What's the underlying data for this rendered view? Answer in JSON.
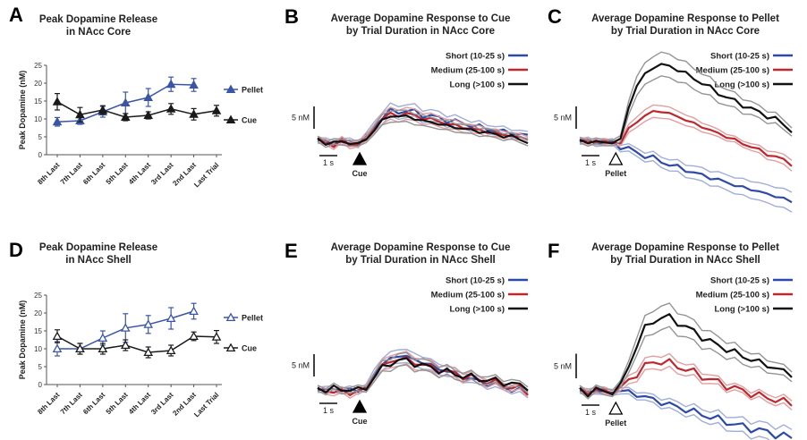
{
  "chart_data": [
    {
      "panel": "A",
      "type": "line",
      "title_lines": [
        "Peak Dopamine Release",
        "in NAcc Core"
      ],
      "ylabel": "Peak Dopamine (nM)",
      "ylim": [
        0,
        25
      ],
      "yticks": [
        0,
        5,
        10,
        15,
        20,
        25
      ],
      "categories": [
        "8th Last",
        "7th Last",
        "6th Last",
        "5th Last",
        "4th Last",
        "3rd Last",
        "2nd Last",
        "Last Trial"
      ],
      "series": [
        {
          "name": "Pellet",
          "color": "#3a55a8",
          "marker": "filled-triangle",
          "values": [
            9.2,
            9.5,
            12,
            14.5,
            16,
            19.7,
            19.5,
            null
          ],
          "errors": [
            1.2,
            1.0,
            1.5,
            3.0,
            2.5,
            2.0,
            1.8,
            null
          ]
        },
        {
          "name": "Cue",
          "color": "#1a1a1a",
          "marker": "filled-triangle",
          "values": [
            14.8,
            11.2,
            12.5,
            10.5,
            11,
            12.8,
            11.3,
            12.3
          ],
          "errors": [
            2.3,
            2.0,
            1.2,
            1.0,
            1.0,
            1.5,
            1.6,
            1.5
          ]
        }
      ]
    },
    {
      "panel": "B",
      "type": "line",
      "title_lines": [
        "Average Dopamine Response to Cue",
        "by Trial Duration in NAcc Core"
      ],
      "scale_y": "5 nM",
      "scale_x": "1 s",
      "event_label": "Cue",
      "event_marker": "filled",
      "series": [
        {
          "name": "Short (10-25 s)",
          "color": "#2e4aa8",
          "values": [
            0,
            -0.3,
            0.2,
            -0.5,
            0,
            -0.2,
            0.6,
            3.5,
            5.5,
            6.5,
            6.8,
            6.8,
            6.5,
            6.0,
            5.6,
            5.2,
            4.8,
            4.4,
            4.0,
            3.6,
            3.2,
            2.8,
            2.5,
            2.2,
            1.9,
            1.6,
            1.3
          ]
        },
        {
          "name": "Medium (25-100 s)",
          "color": "#c0272d",
          "values": [
            0,
            -0.2,
            -0.6,
            -0.2,
            -0.7,
            -0.3,
            0.2,
            3.2,
            5.0,
            5.9,
            6.1,
            6.0,
            5.8,
            5.3,
            4.8,
            4.5,
            4.0,
            3.5,
            3.2,
            2.8,
            2.5,
            2.1,
            1.8,
            1.5,
            1.2,
            0.9,
            0.5
          ]
        },
        {
          "name": "Long (>100 s)",
          "color": "#111111",
          "values": [
            0,
            -0.4,
            0.1,
            -0.6,
            -0.1,
            -0.5,
            0.1,
            2.8,
            4.6,
            5.5,
            5.8,
            5.5,
            5.0,
            4.7,
            4.2,
            3.9,
            3.5,
            3.1,
            2.8,
            2.5,
            2.2,
            1.9,
            1.6,
            1.2,
            0.9,
            0.6,
            -0.2
          ]
        }
      ]
    },
    {
      "panel": "C",
      "type": "line",
      "title_lines": [
        "Average Dopamine Response to Pellet",
        "by Trial Duration in NAcc Core"
      ],
      "scale_y": "5 nM",
      "scale_x": "1 s",
      "event_label": "Pellet",
      "event_marker": "open",
      "series": [
        {
          "name": "Short (10-25 s)",
          "color": "#2e4aa8",
          "values": [
            0,
            -0.3,
            0.1,
            -0.5,
            -0.4,
            -1.0,
            -1.8,
            -2.5,
            -3.2,
            -3.8,
            -4.5,
            -5.2,
            -5.8,
            -6.4,
            -7.0,
            -7.6,
            -8.1,
            -8.6,
            -9.2,
            -9.8,
            -10.3,
            -10.8,
            -11.2,
            -11.8,
            -12.3,
            -12.8,
            -13.5
          ]
        },
        {
          "name": "Medium (25-100 s)",
          "color": "#c0272d",
          "values": [
            0,
            -0.2,
            0.3,
            -0.4,
            -0.3,
            -0.1,
            2.5,
            4.5,
            5.8,
            6.5,
            6.8,
            6.2,
            5.5,
            4.8,
            4.0,
            3.2,
            2.5,
            1.8,
            1.0,
            0.3,
            -0.5,
            -1.2,
            -2.0,
            -2.8,
            -3.5,
            -4.2,
            -5.0
          ]
        },
        {
          "name": "Long (>100 s)",
          "color": "#111111",
          "values": [
            0,
            -0.3,
            0.2,
            -0.5,
            -0.2,
            0.5,
            7.5,
            12.5,
            15.0,
            16.5,
            17.2,
            16.8,
            16.0,
            15.2,
            14.0,
            13.0,
            12.0,
            10.8,
            9.8,
            9.0,
            8.2,
            7.2,
            6.5,
            5.8,
            4.8,
            3.8,
            2.5
          ]
        }
      ]
    },
    {
      "panel": "D",
      "type": "line",
      "title_lines": [
        "Peak Dopamine Release",
        "in NAcc Shell"
      ],
      "ylabel": "Peak Dopamine (nM)",
      "ylim": [
        0,
        25
      ],
      "yticks": [
        0,
        5,
        10,
        15,
        20,
        25
      ],
      "categories": [
        "8th Last",
        "7th Last",
        "6th Last",
        "5th Last",
        "4th Last",
        "3rd Last",
        "2nd Last",
        "Last Trial"
      ],
      "series": [
        {
          "name": "Pellet",
          "color": "#3a55a8",
          "marker": "open-triangle",
          "values": [
            10,
            10,
            13,
            15.8,
            16.8,
            18.5,
            20.5,
            null
          ],
          "errors": [
            2.0,
            1.5,
            2.0,
            4.0,
            2.5,
            3.0,
            2.2,
            null
          ]
        },
        {
          "name": "Cue",
          "color": "#1a1a1a",
          "marker": "open-triangle",
          "values": [
            13.5,
            10,
            10,
            11,
            9,
            9.5,
            13.5,
            13.3
          ],
          "errors": [
            1.8,
            1.5,
            1.5,
            1.5,
            1.5,
            1.5,
            1.2,
            1.8
          ]
        }
      ]
    },
    {
      "panel": "E",
      "type": "line",
      "title_lines": [
        "Average Dopamine Response to Cue",
        "by Trial Duration in NAcc Shell"
      ],
      "scale_y": "5 nM",
      "scale_x": "1 s",
      "event_label": "Cue",
      "event_marker": "filled",
      "series": [
        {
          "name": "Short (10-25 s)",
          "color": "#2e4aa8",
          "values": [
            0,
            -0.3,
            0.2,
            -0.5,
            0,
            -0.4,
            0.3,
            3.5,
            5.5,
            6.8,
            7.5,
            7.2,
            6.6,
            6.0,
            5.2,
            4.6,
            4.0,
            3.4,
            2.8,
            2.2,
            1.7,
            1.2,
            0.8,
            0.4,
            0,
            -0.5,
            -1.0
          ]
        },
        {
          "name": "Medium (25-100 s)",
          "color": "#c0272d",
          "values": [
            0,
            -0.4,
            -0.8,
            -0.3,
            -1.0,
            -0.5,
            0.1,
            3.0,
            5.0,
            6.2,
            6.8,
            6.5,
            6.0,
            5.4,
            4.9,
            4.4,
            3.9,
            3.4,
            2.9,
            2.5,
            2.1,
            1.7,
            1.3,
            0.9,
            0.4,
            0,
            -0.6
          ]
        },
        {
          "name": "Long (>100 s)",
          "color": "#111111",
          "values": [
            0,
            -0.2,
            0.3,
            -0.4,
            0.1,
            -0.3,
            0.2,
            2.8,
            4.6,
            5.8,
            6.4,
            6.3,
            5.8,
            5.2,
            4.8,
            4.3,
            3.8,
            3.3,
            3.0,
            2.6,
            2.3,
            2.0,
            1.8,
            1.5,
            1.2,
            0.8,
            0.4
          ]
        }
      ]
    },
    {
      "panel": "F",
      "type": "line",
      "title_lines": [
        "Average Dopamine Response to Pellet",
        "by Trial Duration in NAcc Shell"
      ],
      "scale_y": "5 nM",
      "scale_x": "1 s",
      "event_label": "Pellet",
      "event_marker": "open",
      "series": [
        {
          "name": "Short (10-25 s)",
          "color": "#2e4aa8",
          "values": [
            0,
            -0.3,
            0.2,
            -0.4,
            -0.2,
            0.1,
            -0.3,
            -0.8,
            -1.2,
            -1.8,
            -2.3,
            -2.8,
            -3.3,
            -3.8,
            -4.3,
            -4.8,
            -5.3,
            -5.8,
            -6.3,
            -6.8,
            -7.3,
            -7.6,
            -8.0,
            -8.4,
            -8.8,
            -9.2,
            -9.6
          ]
        },
        {
          "name": "Medium (25-100 s)",
          "color": "#c0272d",
          "values": [
            0,
            -0.2,
            0.3,
            -0.3,
            0,
            0.5,
            2.0,
            3.5,
            5.0,
            5.8,
            6.0,
            5.6,
            5.0,
            4.4,
            3.7,
            3.0,
            2.3,
            1.7,
            1.1,
            0.5,
            0,
            -0.5,
            -1.0,
            -1.4,
            -1.8,
            -2.2,
            -2.6
          ]
        },
        {
          "name": "Long (>100 s)",
          "color": "#111111",
          "values": [
            0,
            -0.3,
            0.2,
            -0.4,
            0.1,
            0.8,
            5.0,
            9.5,
            12.5,
            14.2,
            15.0,
            14.8,
            14.0,
            13.0,
            12.0,
            11.0,
            10.0,
            9.2,
            8.5,
            7.8,
            7.0,
            6.4,
            5.8,
            5.2,
            4.6,
            4.0,
            3.2
          ]
        }
      ]
    }
  ]
}
